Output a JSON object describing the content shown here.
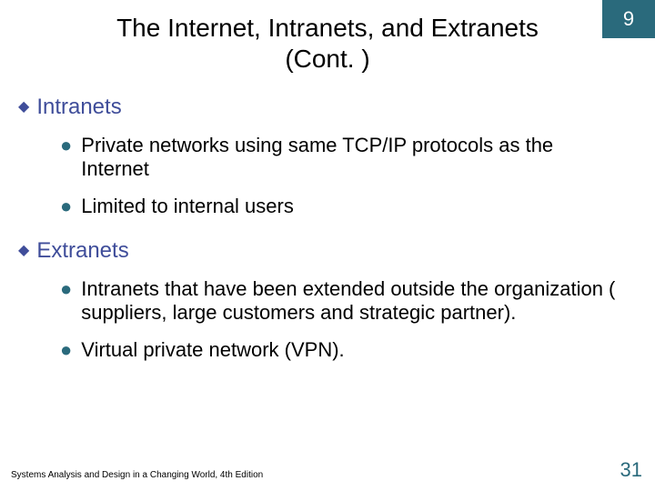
{
  "colors": {
    "chapter_box_bg": "#2a6a7c",
    "chapter_box_text": "#ffffff",
    "title_text": "#000000",
    "heading_text": "#3f4d9a",
    "diamond": "#3f4d9a",
    "dot": "#2a6a7c",
    "body_text": "#000000",
    "page_num": "#2a6a7c",
    "footer_text": "#000000",
    "background": "#ffffff"
  },
  "typography": {
    "title_fontsize": 28,
    "l1_fontsize": 24,
    "l2_fontsize": 22,
    "footer_fontsize": 10,
    "pagenum_fontsize": 22,
    "chapter_fontsize": 22
  },
  "chapter": "9",
  "title_line1": "The Internet, Intranets, and Extranets",
  "title_line2": "(Cont. )",
  "sections": [
    {
      "heading": "Intranets",
      "items": [
        "Private networks using same TCP/IP protocols as the Internet",
        "Limited to internal users"
      ]
    },
    {
      "heading": "Extranets",
      "items": [
        "Intranets that have been extended outside the organization ( suppliers, large customers and strategic partner).",
        "Virtual private network (VPN)."
      ]
    }
  ],
  "footer": "Systems Analysis and Design in a Changing World, 4th Edition",
  "page_number": "31"
}
